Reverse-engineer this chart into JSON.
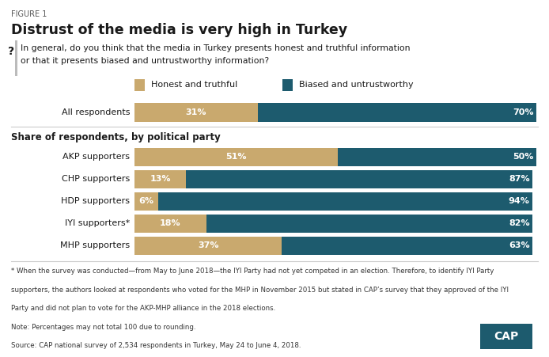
{
  "figure_label": "FIGURE 1",
  "title": "Distrust of the media is very high in Turkey",
  "question_line1": "In general, do you think that the media in Turkey presents honest and truthful information",
  "question_line2": "or that it presents biased and untrustworthy information?",
  "legend_labels": [
    "Honest and truthful",
    "Biased and untrustworthy"
  ],
  "color_honest": "#C9A96E",
  "color_biased": "#1D5B6E",
  "all_category": "All respondents",
  "all_honest": 31,
  "all_biased": 70,
  "party_categories": [
    "AKP supporters",
    "CHP supporters",
    "HDP supporters",
    "IYI supporters*",
    "MHP supporters"
  ],
  "party_honest": [
    51,
    13,
    6,
    18,
    37
  ],
  "party_biased": [
    50,
    87,
    94,
    82,
    63
  ],
  "section_label": "Share of respondents, by political party",
  "footnote": "* When the survey was conducted—from May to June 2018—the IYI Party had not yet competed in an election. Therefore, to identify IYI Party\nsupporters, the authors looked at respondents who voted for the MHP in November 2015 but stated in CAP’s survey that they approved of the IYI\nParty and did not plan to vote for the AKP-MHP alliance in the 2018 elections.",
  "note": "Note: Percentages may not total 100 due to rounding.",
  "source": "Source: CAP national survey of 2,534 respondents in Turkey, May 24 to June 4, 2018.",
  "cap_box_color": "#1D5B6E",
  "background_color": "#FFFFFF",
  "separator_color": "#CCCCCC",
  "text_color": "#1a1a1a",
  "footnote_color": "#333333",
  "label_color": "#555555"
}
